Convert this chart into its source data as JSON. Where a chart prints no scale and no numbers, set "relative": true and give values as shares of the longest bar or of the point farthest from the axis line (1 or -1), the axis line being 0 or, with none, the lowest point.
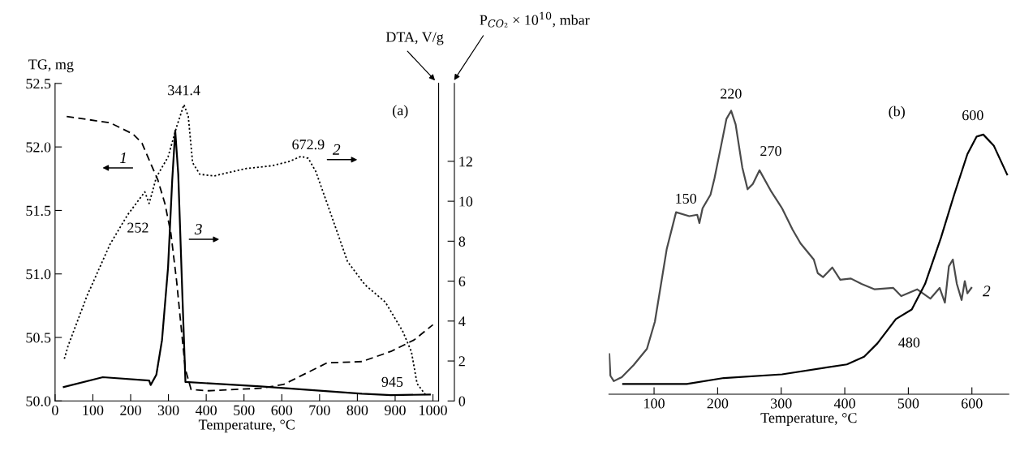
{
  "chart_data": [
    {
      "type": "line",
      "xlabel": "Temperature, °C",
      "ylabel": "TG, mg",
      "y2label": "P$_{CO₂}$ × 10$^{10}$, mbar",
      "y3label": "DTA, V/g",
      "xlim": [
        0,
        1015
      ],
      "xticks": [
        0,
        100,
        200,
        300,
        400,
        500,
        600,
        700,
        800,
        900,
        1000
      ],
      "ylim": [
        50,
        52.5
      ],
      "yticks": [
        {
          "value": 50,
          "label": "50.0"
        },
        50.5,
        {
          "value": 51,
          "label": "51.0"
        },
        51.5,
        {
          "value": 52,
          "label": "52.0"
        },
        52.5
      ],
      "y2lim": [
        0,
        15.9
      ],
      "y2ticks": [
        0,
        2,
        4,
        6,
        8,
        10,
        12
      ],
      "legend": "top",
      "series": [
        {
          "name": "1",
          "color": "#000000",
          "line_style": "dashed",
          "axis": "y",
          "x": [
            30.7,
            145.6,
            206.9,
            229.9,
            252.9,
            272,
            291,
            306.5,
            321.8,
            333.3,
            344.8,
            360,
            406,
            544,
            605,
            659,
            720,
            812,
            889,
            950,
            1000
          ],
          "values": [
            52.24,
            52.19,
            52.1,
            52.03,
            51.87,
            51.74,
            51.55,
            51.32,
            50.94,
            50.59,
            50.25,
            50.09,
            50.08,
            50.1,
            50.13,
            50.21,
            50.3,
            50.31,
            50.39,
            50.48,
            50.6
          ]
        },
        {
          "name": "2",
          "color": "#000000",
          "line_style": "dotted",
          "axis": "y2",
          "x": [
            24.5,
            34.5,
            84,
            145.6,
            191.6,
            237.5,
            249,
            268,
            299,
            322,
            341,
            352.5,
            364,
            383,
            421,
            506,
            575,
            621,
            651,
            670,
            690,
            720,
            774,
            820,
            874,
            920,
            943,
            958,
            981
          ],
          "values": [
            2.11,
            2.76,
            5.24,
            7.85,
            9.31,
            10.47,
            9.89,
            11.2,
            12.22,
            13.75,
            14.84,
            14.25,
            11.93,
            11.35,
            11.27,
            11.64,
            11.78,
            12.0,
            12.25,
            12.15,
            11.49,
            9.89,
            6.98,
            5.82,
            4.95,
            3.49,
            2.47,
            0.87,
            0.29
          ]
        },
        {
          "name": "3",
          "color": "#000000",
          "line_style": "solid",
          "axis": "y2",
          "x": [
            23,
            126.4,
            249,
            253,
            268,
            283,
            299,
            310,
            318,
            326,
            337,
            345,
            544,
            812,
            889,
            992
          ],
          "values": [
            0.7,
            1.19,
            1.02,
            0.8,
            1.31,
            3.05,
            6.69,
            11.05,
            13.53,
            11.35,
            5.24,
            0.95,
            0.73,
            0.36,
            0.29,
            0.32
          ]
        }
      ],
      "annotations": [
        {
          "text": "341.4",
          "x": 341,
          "y": 52.33
        },
        {
          "text": "672.9",
          "x": 670,
          "y": 51.92
        },
        {
          "text": "252",
          "x": 249,
          "y": 51.55
        },
        {
          "text": "945",
          "x": 958,
          "y": 50.14
        },
        "(a)"
      ]
    },
    {
      "type": "line",
      "xlabel": "Temperature, °C",
      "relative": true,
      "xlim": [
        29,
        658
      ],
      "xticks": [
        100,
        200,
        300,
        400,
        500,
        600
      ],
      "tick_labels": "x",
      "series": [
        {
          "name": "2",
          "color": "#4a4a4a",
          "line_style": "solid",
          "x": [
            29.6,
            31.3,
            36.7,
            49.2,
            67.9,
            88.8,
            101.3,
            111.7,
            120,
            134.6,
            155.4,
            167.9,
            171.3,
            176.3,
            188.8,
            195,
            205.4,
            213.8,
            221.3,
            228.3,
            238.8,
            247.1,
            255.4,
            265.8,
            284.6,
            301.3,
            318,
            330.4,
            351.3,
            357.5,
            365.8,
            380.4,
            392.9,
            409.6,
            426.3,
            447.1,
            476.3,
            488.8,
            513.8,
            534.6,
            549.2,
            557.5,
            563.8,
            570,
            576.3,
            583.8,
            588.8,
            592.9,
            599.2
          ],
          "values": [
            0.141,
            0.065,
            0.046,
            0.06,
            0.103,
            0.16,
            0.256,
            0.399,
            0.513,
            0.642,
            0.628,
            0.633,
            0.604,
            0.656,
            0.704,
            0.761,
            0.876,
            0.971,
            1.0,
            0.952,
            0.8,
            0.723,
            0.742,
            0.79,
            0.714,
            0.656,
            0.58,
            0.532,
            0.475,
            0.427,
            0.413,
            0.447,
            0.404,
            0.408,
            0.389,
            0.37,
            0.375,
            0.346,
            0.37,
            0.337,
            0.375,
            0.323,
            0.451,
            0.475,
            0.389,
            0.332,
            0.399,
            0.356,
            0.375
          ]
        },
        {
          "color": "#000000",
          "line_style": "solid",
          "x": [
            51.3,
            151.3,
            209.6,
            301.3,
            403.3,
            430.4,
            451.3,
            480.4,
            505.4,
            526.3,
            551.3,
            572.1,
            592.9,
            607.5,
            617.9,
            634.6,
            655.4
          ],
          "values": [
            0.036,
            0.036,
            0.057,
            0.07,
            0.105,
            0.132,
            0.179,
            0.265,
            0.299,
            0.389,
            0.552,
            0.704,
            0.847,
            0.909,
            0.916,
            0.876,
            0.775
          ]
        }
      ],
      "annotations": [
        {
          "text": "150",
          "x": 150,
          "y": 0.63
        },
        {
          "text": "220",
          "x": 221,
          "y": 1.0
        },
        {
          "text": "270",
          "x": 266,
          "y": 0.79
        },
        {
          "text": "480",
          "x": 480,
          "y": 0.265
        },
        {
          "text": "600",
          "x": 612,
          "y": 0.916
        },
        "(b)"
      ]
    }
  ]
}
